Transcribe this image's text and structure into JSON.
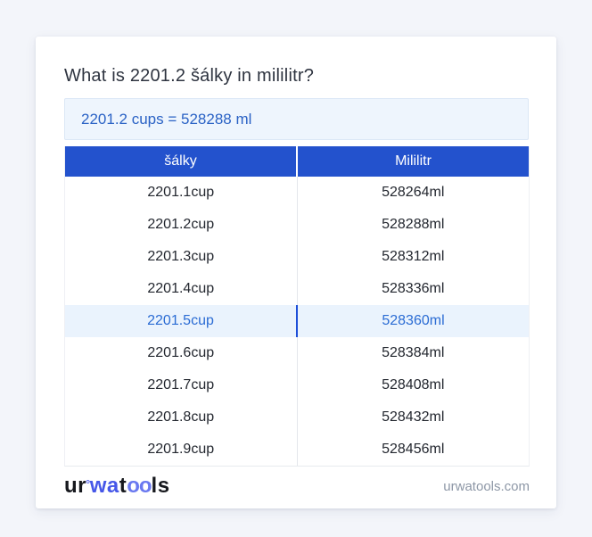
{
  "card": {
    "title": "What is 2201.2 šálky in mililitr?",
    "result_text": "2201.2 cups = 528288 ml"
  },
  "table": {
    "headers": [
      "šálky",
      "Mililitr"
    ],
    "highlighted_row_index": 4,
    "rows": [
      {
        "cup": "2201.1cup",
        "ml": "528264ml"
      },
      {
        "cup": "2201.2cup",
        "ml": "528288ml"
      },
      {
        "cup": "2201.3cup",
        "ml": "528312ml"
      },
      {
        "cup": "2201.4cup",
        "ml": "528336ml"
      },
      {
        "cup": "2201.5cup",
        "ml": "528360ml"
      },
      {
        "cup": "2201.6cup",
        "ml": "528384ml"
      },
      {
        "cup": "2201.7cup",
        "ml": "528408ml"
      },
      {
        "cup": "2201.8cup",
        "ml": "528432ml"
      },
      {
        "cup": "2201.9cup",
        "ml": "528456ml"
      }
    ]
  },
  "footer": {
    "logo": {
      "seg1": "ur",
      "mark": "°",
      "seg2": "wa",
      "seg3": "t",
      "seg4": "oo",
      "seg5": "ls"
    },
    "site": "urwatools.com"
  },
  "colors": {
    "page_background": "#f3f5fa",
    "card_background": "#ffffff",
    "table_header_bg": "#2352cd",
    "table_header_text": "#ffffff",
    "result_box_bg": "#eef5fd",
    "result_box_border": "#dbe7f6",
    "result_text": "#2a62c5",
    "highlight_row_bg": "#eaf3fd",
    "highlight_row_text": "#2b6cd4",
    "highlight_divider": "#1d4ed8",
    "row_text": "#23272f",
    "logo_blue": "#4657e8",
    "footer_site_text": "#8d97a6"
  }
}
